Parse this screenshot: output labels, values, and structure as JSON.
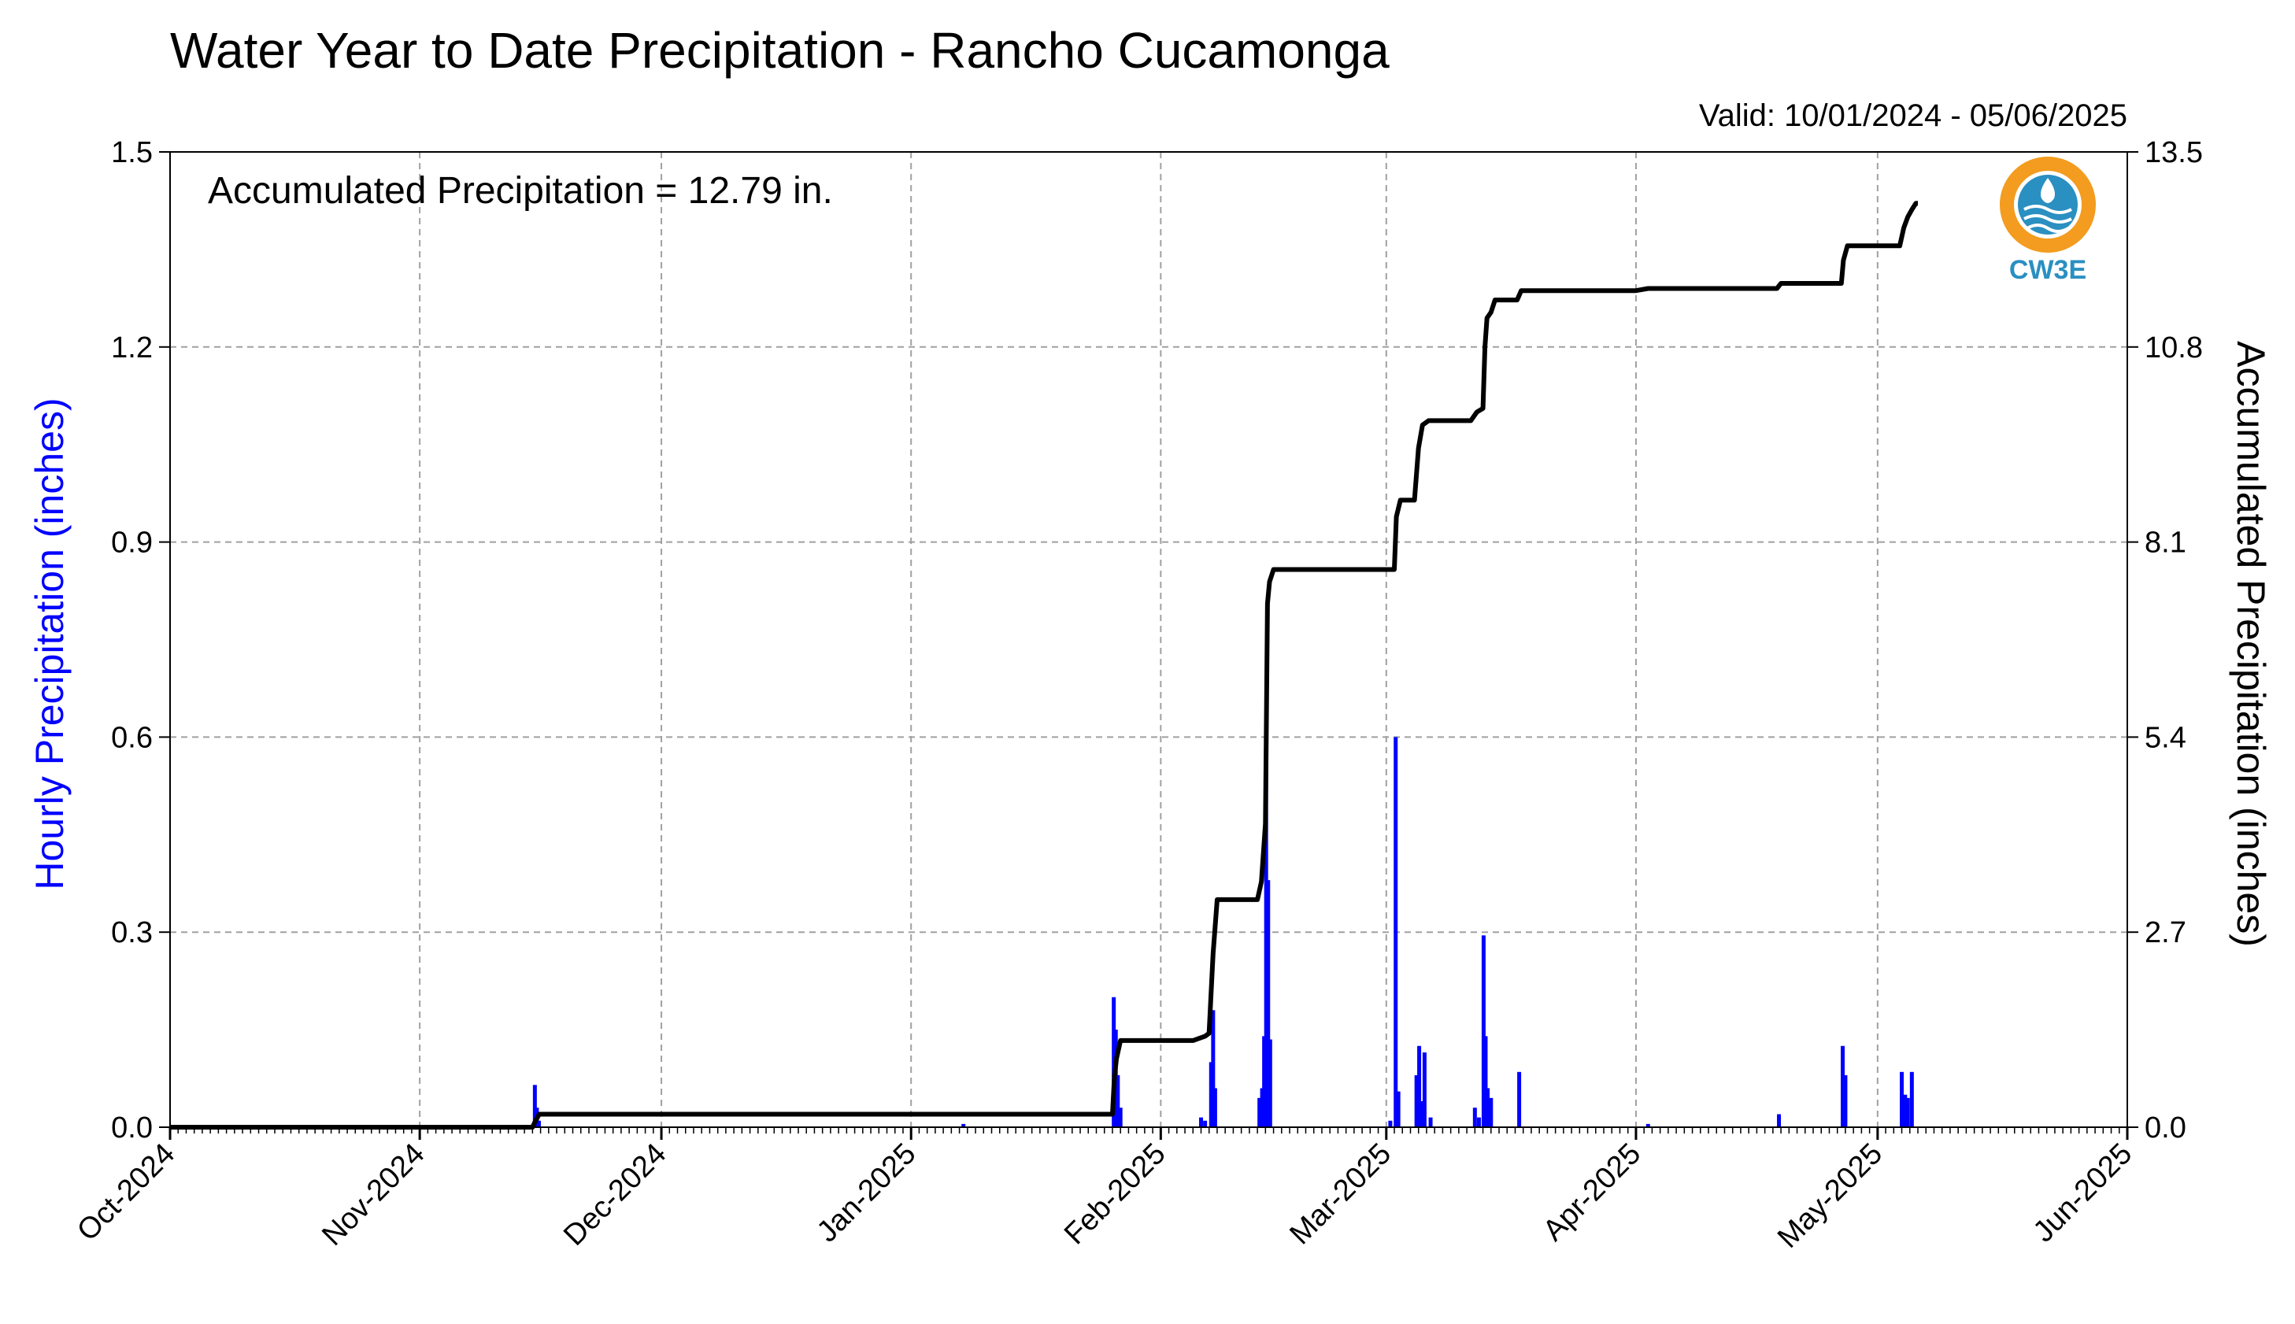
{
  "chart_data": {
    "type": "bar",
    "title": "Water Year to Date Precipitation - Rancho Cucamonga",
    "subtitle": "Valid: 10/01/2024 - 05/06/2025",
    "annotation": "Accumulated Precipitation = 12.79 in.",
    "ylabel_left": "Hourly Precipitation (inches)",
    "ylabel_right": "Accumulated Precipitation (inches)",
    "xlabel": "",
    "x_range": [
      "2024-10-01",
      "2025-06-01"
    ],
    "ylim_left": [
      0,
      1.5
    ],
    "ylim_right": [
      0,
      13.5
    ],
    "grid": true,
    "x_ticks": [
      {
        "date": "2024-10-01",
        "label": "Oct-2024"
      },
      {
        "date": "2024-11-01",
        "label": "Nov-2024"
      },
      {
        "date": "2024-12-01",
        "label": "Dec-2024"
      },
      {
        "date": "2025-01-01",
        "label": "Jan-2025"
      },
      {
        "date": "2025-02-01",
        "label": "Feb-2025"
      },
      {
        "date": "2025-03-01",
        "label": "Mar-2025"
      },
      {
        "date": "2025-04-01",
        "label": "Apr-2025"
      },
      {
        "date": "2025-05-01",
        "label": "May-2025"
      },
      {
        "date": "2025-06-01",
        "label": "Jun-2025"
      }
    ],
    "y_ticks_left": [
      "0.0",
      "0.3",
      "0.6",
      "0.9",
      "1.2",
      "1.5"
    ],
    "y_ticks_right": [
      "0.0",
      "2.7",
      "5.4",
      "8.1",
      "10.8",
      "13.5"
    ],
    "series": [
      {
        "name": "Hourly Precipitation",
        "axis": "left",
        "type": "bar",
        "color": "#0000ff",
        "points": [
          {
            "x": "2024-11-15T07:00",
            "y": 0.065
          },
          {
            "x": "2024-11-15T13:00",
            "y": 0.03
          },
          {
            "x": "2024-11-15T19:00",
            "y": 0.01
          },
          {
            "x": "2025-01-07T12:00",
            "y": 0.005
          },
          {
            "x": "2025-01-26T04:00",
            "y": 0.2
          },
          {
            "x": "2025-01-26T10:00",
            "y": 0.15
          },
          {
            "x": "2025-01-26T16:00",
            "y": 0.08
          },
          {
            "x": "2025-01-27T00:00",
            "y": 0.03
          },
          {
            "x": "2025-02-06T00:00",
            "y": 0.015
          },
          {
            "x": "2025-02-06T12:00",
            "y": 0.01
          },
          {
            "x": "2025-02-07T06:00",
            "y": 0.1
          },
          {
            "x": "2025-02-07T12:00",
            "y": 0.18
          },
          {
            "x": "2025-02-07T18:00",
            "y": 0.06
          },
          {
            "x": "2025-02-13T06:00",
            "y": 0.045
          },
          {
            "x": "2025-02-13T14:00",
            "y": 0.06
          },
          {
            "x": "2025-02-13T20:00",
            "y": 0.14
          },
          {
            "x": "2025-02-14T02:00",
            "y": 0.57
          },
          {
            "x": "2025-02-14T08:00",
            "y": 0.38
          },
          {
            "x": "2025-02-14T14:00",
            "y": 0.135
          },
          {
            "x": "2025-03-01T12:00",
            "y": 0.01
          },
          {
            "x": "2025-03-02T04:00",
            "y": 0.6
          },
          {
            "x": "2025-03-02T12:00",
            "y": 0.055
          },
          {
            "x": "2025-03-04T18:00",
            "y": 0.08
          },
          {
            "x": "2025-03-05T02:00",
            "y": 0.125
          },
          {
            "x": "2025-03-05T12:00",
            "y": 0.04
          },
          {
            "x": "2025-03-05T18:00",
            "y": 0.115
          },
          {
            "x": "2025-03-06T12:00",
            "y": 0.015
          },
          {
            "x": "2025-03-12T00:00",
            "y": 0.03
          },
          {
            "x": "2025-03-12T12:00",
            "y": 0.015
          },
          {
            "x": "2025-03-13T02:00",
            "y": 0.295
          },
          {
            "x": "2025-03-13T08:00",
            "y": 0.14
          },
          {
            "x": "2025-03-13T14:00",
            "y": 0.06
          },
          {
            "x": "2025-03-14T00:00",
            "y": 0.045
          },
          {
            "x": "2025-03-17T12:00",
            "y": 0.085
          },
          {
            "x": "2025-04-02T12:00",
            "y": 0.005
          },
          {
            "x": "2025-04-18T18:00",
            "y": 0.02
          },
          {
            "x": "2025-04-26T16:00",
            "y": 0.125
          },
          {
            "x": "2025-04-27T00:00",
            "y": 0.08
          },
          {
            "x": "2025-05-04T00:00",
            "y": 0.085
          },
          {
            "x": "2025-05-04T10:00",
            "y": 0.05
          },
          {
            "x": "2025-05-04T18:00",
            "y": 0.045
          },
          {
            "x": "2025-05-05T06:00",
            "y": 0.085
          }
        ]
      },
      {
        "name": "Accumulated Precipitation",
        "axis": "right",
        "type": "line",
        "color": "#000000",
        "points": [
          {
            "x": "2024-10-01T00:00",
            "y": 0.0
          },
          {
            "x": "2024-11-15T00:00",
            "y": 0.0
          },
          {
            "x": "2024-11-15T08:00",
            "y": 0.08
          },
          {
            "x": "2024-11-15T20:00",
            "y": 0.18
          },
          {
            "x": "2025-01-26T00:00",
            "y": 0.18
          },
          {
            "x": "2025-01-26T06:00",
            "y": 0.7
          },
          {
            "x": "2025-01-26T12:00",
            "y": 0.95
          },
          {
            "x": "2025-01-27T00:00",
            "y": 1.2
          },
          {
            "x": "2025-02-05T00:00",
            "y": 1.2
          },
          {
            "x": "2025-02-06T12:00",
            "y": 1.26
          },
          {
            "x": "2025-02-07T00:00",
            "y": 1.3
          },
          {
            "x": "2025-02-07T12:00",
            "y": 2.4
          },
          {
            "x": "2025-02-08T00:00",
            "y": 3.15
          },
          {
            "x": "2025-02-13T00:00",
            "y": 3.15
          },
          {
            "x": "2025-02-13T12:00",
            "y": 3.4
          },
          {
            "x": "2025-02-14T00:00",
            "y": 4.2
          },
          {
            "x": "2025-02-14T06:00",
            "y": 7.25
          },
          {
            "x": "2025-02-14T12:00",
            "y": 7.55
          },
          {
            "x": "2025-02-15T00:00",
            "y": 7.72
          },
          {
            "x": "2025-03-02T00:00",
            "y": 7.72
          },
          {
            "x": "2025-03-02T06:00",
            "y": 8.45
          },
          {
            "x": "2025-03-02T18:00",
            "y": 8.68
          },
          {
            "x": "2025-03-04T12:00",
            "y": 8.68
          },
          {
            "x": "2025-03-05T00:00",
            "y": 9.4
          },
          {
            "x": "2025-03-05T12:00",
            "y": 9.72
          },
          {
            "x": "2025-03-06T06:00",
            "y": 9.78
          },
          {
            "x": "2025-03-11T12:00",
            "y": 9.78
          },
          {
            "x": "2025-03-12T06:00",
            "y": 9.9
          },
          {
            "x": "2025-03-13T00:00",
            "y": 9.95
          },
          {
            "x": "2025-03-13T06:00",
            "y": 10.8
          },
          {
            "x": "2025-03-13T12:00",
            "y": 11.2
          },
          {
            "x": "2025-03-14T00:00",
            "y": 11.28
          },
          {
            "x": "2025-03-14T12:00",
            "y": 11.45
          },
          {
            "x": "2025-03-17T06:00",
            "y": 11.45
          },
          {
            "x": "2025-03-17T18:00",
            "y": 11.58
          },
          {
            "x": "2025-04-01T00:00",
            "y": 11.58
          },
          {
            "x": "2025-04-02T12:00",
            "y": 11.61
          },
          {
            "x": "2025-04-18T12:00",
            "y": 11.61
          },
          {
            "x": "2025-04-19T00:00",
            "y": 11.68
          },
          {
            "x": "2025-04-26T12:00",
            "y": 11.68
          },
          {
            "x": "2025-04-26T18:00",
            "y": 12.0
          },
          {
            "x": "2025-04-27T06:00",
            "y": 12.2
          },
          {
            "x": "2025-05-03T18:00",
            "y": 12.2
          },
          {
            "x": "2025-05-04T06:00",
            "y": 12.45
          },
          {
            "x": "2025-05-04T18:00",
            "y": 12.6
          },
          {
            "x": "2025-05-05T06:00",
            "y": 12.7
          },
          {
            "x": "2025-05-05T18:00",
            "y": 12.79
          },
          {
            "x": "2025-05-06T00:00",
            "y": 12.79
          }
        ]
      }
    ]
  },
  "logo": {
    "label": "CW3E",
    "ring_color": "#f39c1f",
    "inner_color": "#2a8fc1"
  },
  "colors": {
    "hourly_axis_label": "#0000ff",
    "grid": "#a0a0a0"
  }
}
